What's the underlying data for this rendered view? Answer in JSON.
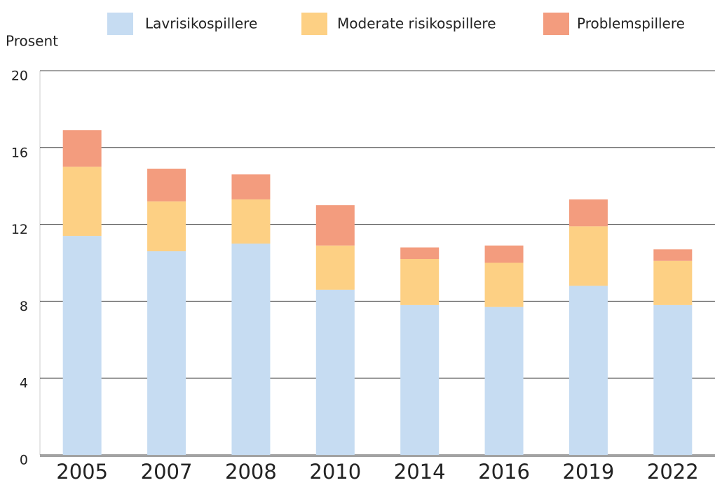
{
  "chart_data": {
    "type": "stacked_bar",
    "y_label": "Prosent",
    "categories": [
      "2005",
      "2007",
      "2008",
      "2010",
      "2014",
      "2016",
      "2019",
      "2022"
    ],
    "series": [
      {
        "name": "Lavrisikospillere",
        "color": "#c6dcf2",
        "values": [
          11.4,
          10.6,
          11.0,
          8.6,
          7.8,
          7.7,
          8.8,
          7.8
        ]
      },
      {
        "name": "Moderate risikospillere",
        "color": "#fdd084",
        "values": [
          3.6,
          2.6,
          2.3,
          2.3,
          2.4,
          2.3,
          3.1,
          2.3
        ]
      },
      {
        "name": "Problemspillere",
        "color": "#f39c7e",
        "values": [
          1.9,
          1.7,
          1.3,
          2.1,
          0.6,
          0.9,
          1.4,
          0.6
        ]
      }
    ],
    "ylim": [
      0,
      20
    ],
    "yticks": [
      0,
      4,
      8,
      12,
      16,
      20
    ],
    "grid": true
  }
}
